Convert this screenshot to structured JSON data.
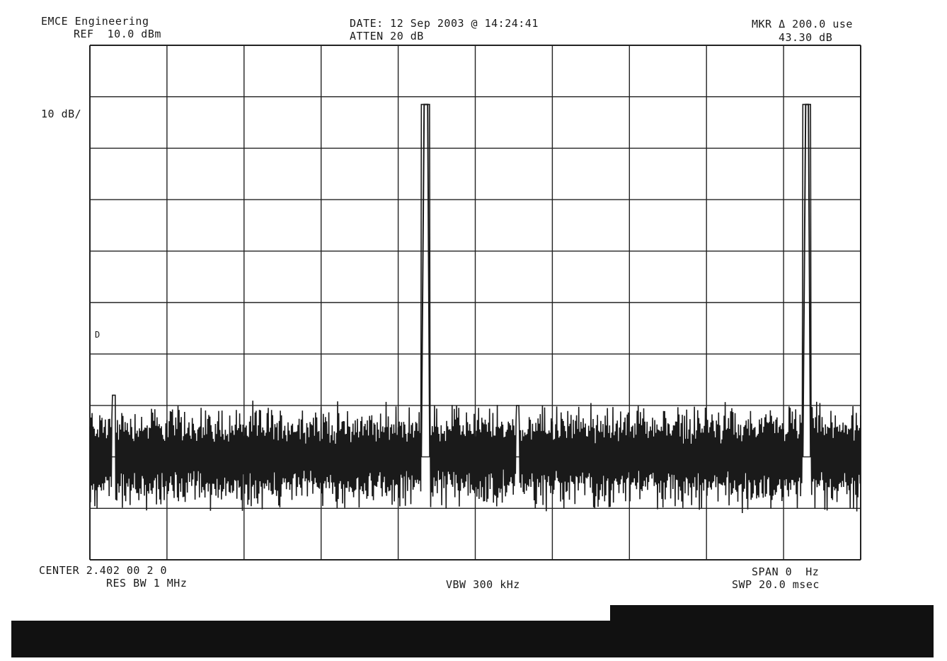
{
  "header": {
    "company": "EMCE Engineering",
    "ref": "REF  10.0 dBm",
    "date": "DATE: 12 Sep 2003 @ 14:24:41",
    "atten": "ATTEN 20 dB",
    "marker": "MKR Δ 200.0 use",
    "marker_value": "43.30 dB"
  },
  "scale_label": "10 dB/",
  "marker_symbol": "D",
  "footer": {
    "center": "CENTER 2.402 00 2 0",
    "res_bw": "RES BW 1 MHz",
    "vbw": "VBW 300 kHz",
    "span": "SPAN 0  Hz",
    "swp": "SWP 20.0 msec"
  },
  "colors": {
    "trace": "#1a1a1a",
    "grid": "#222222",
    "bar": "#111111"
  },
  "chart_data": {
    "type": "line",
    "title": "",
    "xlabel": "",
    "ylabel": "",
    "x_unit": "ms",
    "y_unit": "dBm",
    "xlim": [
      0,
      20
    ],
    "ylim": [
      -90,
      10
    ],
    "grid": true,
    "grid_divisions": {
      "x": 10,
      "y": 10
    },
    "series": [
      {
        "name": "",
        "noise_floor_mean": -70,
        "noise_floor_spread": 8,
        "pulses": [
          {
            "start": 8.6,
            "end": 8.82,
            "peak": -1.5
          },
          {
            "start": 18.5,
            "end": 18.7,
            "peak": -1.5
          }
        ],
        "spur_bumps": [
          {
            "x": 0.62,
            "value": -58
          },
          {
            "x": 11.1,
            "value": -60
          }
        ]
      }
    ]
  }
}
